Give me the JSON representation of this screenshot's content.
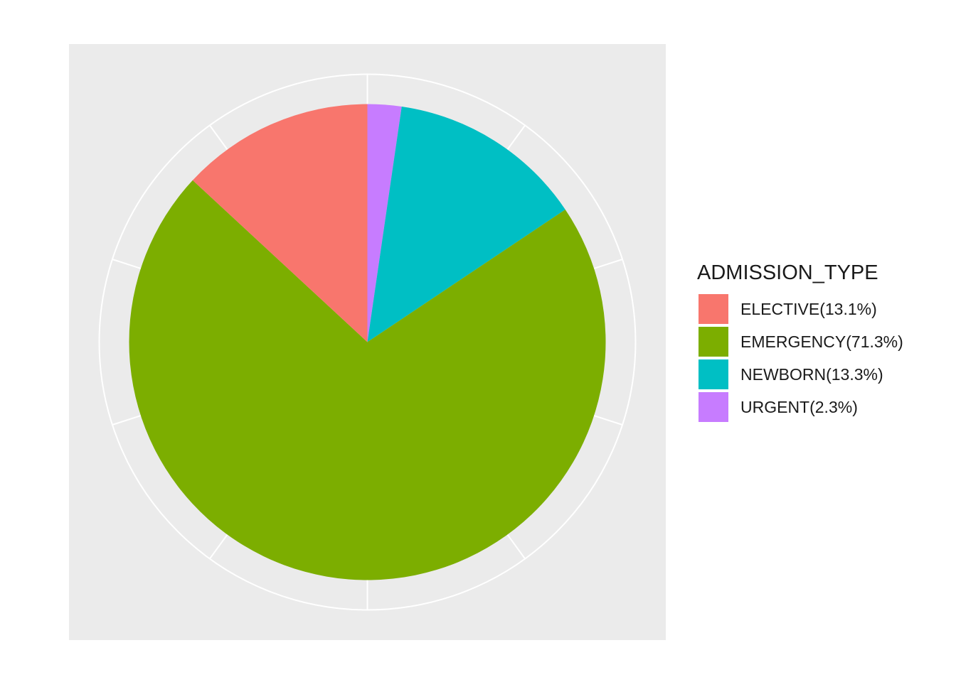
{
  "chart_data": {
    "type": "pie",
    "legend_title": "ADMISSION_TYPE",
    "legend_position": "right",
    "panel_background": "#ebebeb",
    "grid_color": "#ffffff",
    "slices": [
      {
        "category": "ELECTIVE",
        "label": "ELECTIVE(13.1%)",
        "value": 13.1,
        "color": "#F8766D"
      },
      {
        "category": "EMERGENCY",
        "label": "EMERGENCY(71.3%)",
        "value": 71.3,
        "color": "#7CAE00"
      },
      {
        "category": "NEWBORN",
        "label": "NEWBORN(13.3%)",
        "value": 13.3,
        "color": "#00BFC4"
      },
      {
        "category": "URGENT",
        "label": "URGENT(2.3%)",
        "value": 2.3,
        "color": "#C77CFF"
      }
    ],
    "stack_order_clockwise": [
      "URGENT",
      "NEWBORN",
      "EMERGENCY",
      "ELECTIVE"
    ],
    "grid_break_step": 10
  }
}
